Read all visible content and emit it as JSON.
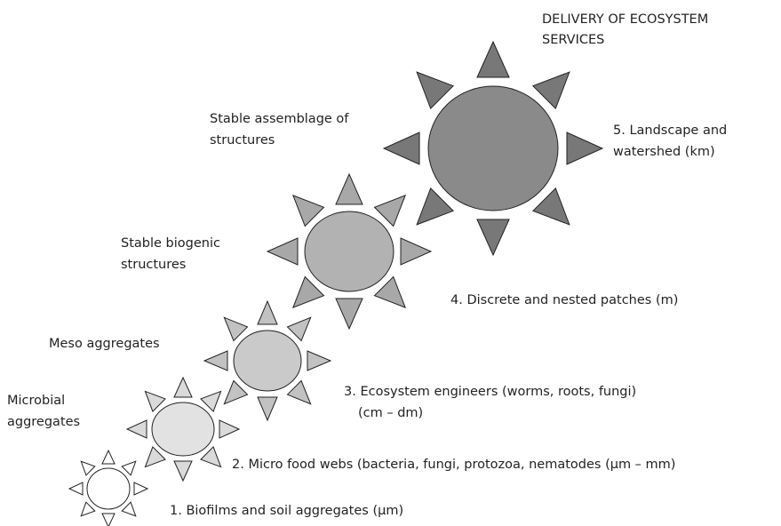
{
  "title": {
    "lines": [
      "DELIVERY OF ECOSYSTEM",
      "SERVICES"
    ]
  },
  "levels": [
    {
      "left": [
        "Stable assemblage of",
        "structures"
      ],
      "right": [
        "5. Landscape and",
        "watershed (km)"
      ]
    },
    {
      "left": [
        "Stable biogenic",
        "structures"
      ],
      "right": [
        "4. Discrete and nested patches (m)"
      ]
    },
    {
      "left": [
        "Meso aggregates"
      ],
      "right": [
        "3. Ecosystem engineers (worms, roots, fungi)",
        "(cm – dm)"
      ]
    },
    {
      "left": [
        "Microbial",
        "aggregates"
      ],
      "right": [
        "2. Micro food webs (bacteria, fungi, protozoa, nematodes (µm – mm)"
      ]
    },
    {
      "right": [
        "1. Biofilms and soil aggregates (µm)"
      ]
    }
  ]
}
